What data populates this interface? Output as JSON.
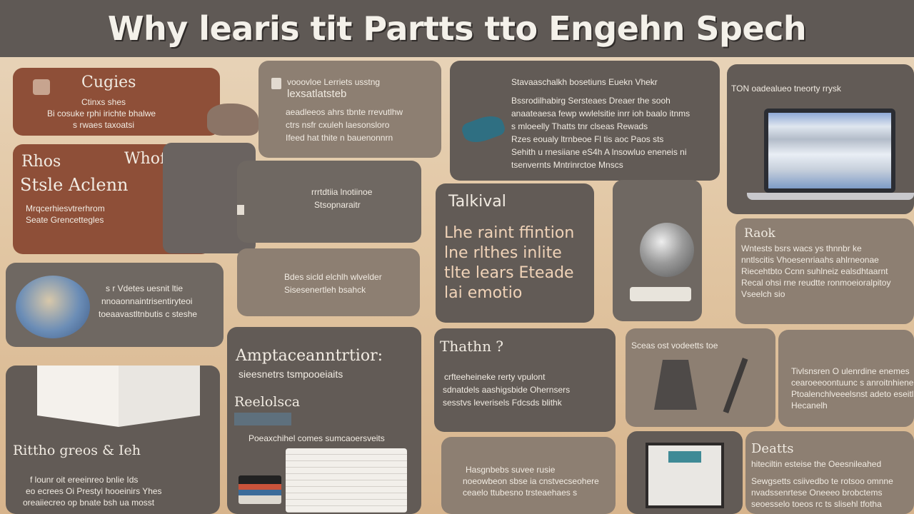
{
  "title": "Why learis tit  Partts tto Engehn Spech",
  "tiles": {
    "a": {
      "heading": "Cugies",
      "lines": [
        "Ctinxs shes",
        "Bi cosuke  rphi irichte bhalwe",
        "s rwaes taxoatsi"
      ]
    },
    "b": {
      "header1": "vooovloe Lerriets usstng",
      "header2": "lexsatlatsteb",
      "lines": [
        "aeadleeos ahrs tbnte rrevutlhw",
        "ctrs nsfr cxuleh laesonsloro",
        "Ifeed hat thite n bauenonnrn"
      ]
    },
    "c": {
      "header": "Stavaaschalkh bosetiuns Euekn Vhekr",
      "lines": [
        "Bssrodilhabirg Sersteaes Dreaer the sooh",
        "anaateaesa fewp wwlelsitie inrr ioh baalo itnms",
        "s mloeelly  Thatts tnr clseas Rewads",
        "Rzes eoualy ltrnbeoe  Fl tis  aoc Paos sts",
        "Sehith  u rnesiiane eS4h  A lnsowluo eneneis ni",
        "tsenvernts Mntrinrctoe Mnscs"
      ]
    },
    "d": {
      "header": "TON oadealueo tneorty rrysk"
    },
    "e": {
      "heading1": "Rhos",
      "heading1b": "Whofin Els",
      "heading2": "Stsle Aclenn",
      "lines": [
        "Mrqcerhiesvtrerhrom",
        "Seate Grencettegles"
      ]
    },
    "f": {
      "lines": [
        "rrrtdtiia lnotiinoe",
        "Stsopnaraitr"
      ]
    },
    "g": {
      "heading": "Talkival",
      "lines": [
        "Lhe  raint ffintion",
        "lne rlthes inlite",
        "tlte lears Eteade",
        "lai  emotio"
      ]
    },
    "h": {
      "heading": "Raok",
      "lines": [
        "Wntests bsrs wacs ys thnnbr ke",
        "nntlscitis Vhoesenriaahs ahlrneonae",
        "Riecehtbto Ccnn suhlneiz ealsdhtaarnt",
        "Recal ohsi rne reudtte ronmoeioralpitoy",
        "Vseelch sio"
      ]
    },
    "i": {
      "lines": [
        "s  r Vdetes uesnit ltie",
        "nnoaonnaintrisentiryteoi",
        "toeaavastltnbutis c steshe"
      ]
    },
    "j": {
      "lines": [
        "Bdes sicld elchlh wlvelder",
        "Sisesenertleh bsahck"
      ]
    },
    "k": {
      "heading": "Thathn ?",
      "lines": [
        "crfteeheineke  rerty vpulont",
        "sdnatdels  aashigsbide Ohernsers",
        "sesstvs leverisels  Fdcsds  blithk"
      ]
    },
    "l": {
      "header": "Sceas ost vodeetts toe"
    },
    "m": {
      "lines": [
        "Tivlsnsren O ulenrdine enemes",
        "cearoeeoontuunc s anroitnhiene",
        "Ptoalenchlveeelsnst adeto eseitles",
        "Hecanelh"
      ]
    },
    "n": {
      "heading": "Rittho  greos  & Ieh",
      "lines": [
        "f  lounr  oit ereeinreo bnlie Ids",
        "eo ecrees Oi Prestyi hooeinirs Yhes",
        "oreaiiecreo op bnate bsh ua mosst"
      ]
    },
    "o": {
      "heading": "Amptaceanntrtior:",
      "subheading": "sieesnetrs tsmpooeiaits",
      "heading2": "Reelolsca",
      "footer": "Poeaxchihel comes sumcaoersveits"
    },
    "p": {
      "lines": [
        "Hasgnbebs suvee rusie",
        "noeowbeon sbse ia cnstvecseohere",
        "ceaelo  ttubesno  trsteaehaes s"
      ]
    },
    "q": {
      "heading": "Deatts",
      "lines": [
        "hiteciltin esteise the Oeesnileahed",
        "Sewgsetts csiivedbo te rotsoo omnne",
        "nvadssenrtese Oneeeo brobctems",
        "seoesselo toeos rc ts slisehl tfotha"
      ]
    }
  },
  "colors": {
    "title_bar": "#5f5955",
    "rust": "#8e4f38",
    "dark_tile": "#625b56",
    "background": "#e2c7a4"
  },
  "icons": [
    "globe-illustration",
    "laptop-illustration",
    "open-book-illustration",
    "headphone-illustration",
    "tools-illustration",
    "papers-illustration",
    "screen-illustration",
    "feather-illustration"
  ]
}
